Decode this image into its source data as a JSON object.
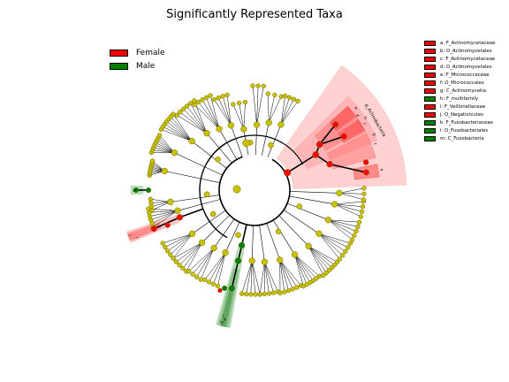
{
  "title": "Significantly Represented Taxa",
  "legend": [
    {
      "label": "Female",
      "color": "#ff0000"
    },
    {
      "label": "Male",
      "color": "#008000"
    }
  ],
  "taxa_legend": [
    {
      "label": "a: F_Actinomycetaceae",
      "group": "Female"
    },
    {
      "label": "b: O_Actinomycetales",
      "group": "Female"
    },
    {
      "label": "c: F_Actinomycetaceae",
      "group": "Female"
    },
    {
      "label": "d: O_Actinomycetales",
      "group": "Female"
    },
    {
      "label": "e: F_Micrococcaceae",
      "group": "Female"
    },
    {
      "label": "f: O_Micrococcales",
      "group": "Female"
    },
    {
      "label": "g: C_Actinomycetia",
      "group": "Female"
    },
    {
      "label": "h: F_multifamily",
      "group": "Male"
    },
    {
      "label": "i: F_Veillonellaceae",
      "group": "Female"
    },
    {
      "label": "j: O_Negativicutes",
      "group": "Female"
    },
    {
      "label": "k: F_Fusobacteriaceae",
      "group": "Male"
    },
    {
      "label": "l: O_Fusobacteriales",
      "group": "Male"
    },
    {
      "label": "m: C_Fusobacteria",
      "group": "Male"
    }
  ],
  "clade_labels": {
    "phylum": "p_Actinobacteria",
    "letters": [
      "a",
      "b",
      "c",
      "d",
      "e",
      "f",
      "g",
      "h",
      "i",
      "j",
      "k",
      "l",
      "m"
    ]
  },
  "colors": {
    "node_default": "#c8c000",
    "node_outline": "#6a6a00",
    "female": "#ff0000",
    "male": "#008000",
    "female_shade": "#ff9999",
    "male_shade": "#99cc99"
  }
}
